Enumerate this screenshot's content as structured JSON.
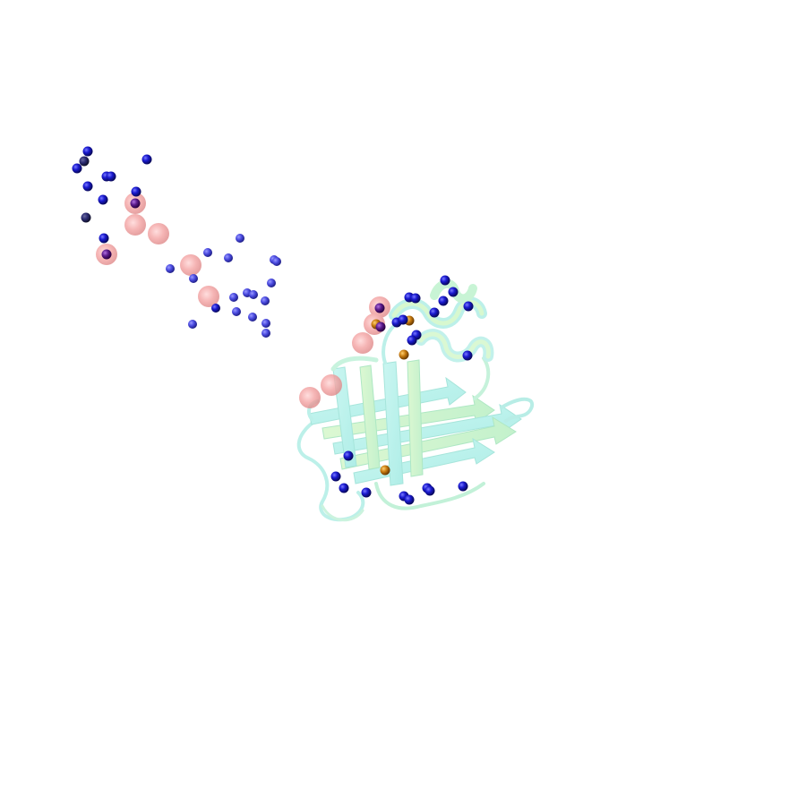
{
  "scene": {
    "background_color": "#ffffff",
    "colors": {
      "ribbon_cyan": "#b9f2ee",
      "ribbon_green": "#cdf4c4",
      "ribbon_outline": "#8fd9c9",
      "pseudo_atom_pink": "#f4a3a3",
      "sphere_blue": "#1414c8",
      "sphere_blue_light": "#4a4adf",
      "sphere_purple": "#5a1a8a",
      "sphere_orange": "#c77a10",
      "sphere_navy": "#232366"
    },
    "objects": [
      {
        "name": "protein-cartoon",
        "representation": "cartoon",
        "secondary_structure": [
          "beta-barrel",
          "alpha-helix",
          "loops"
        ]
      },
      {
        "name": "pseudo-atom-path",
        "representation": "spheres",
        "color": "pink",
        "transparency": "semi-transparent"
      },
      {
        "name": "ion-cluster-left",
        "representation": "spheres",
        "color": "blue"
      },
      {
        "name": "ion-cluster-protein",
        "representation": "spheres",
        "color": "blue"
      }
    ]
  }
}
